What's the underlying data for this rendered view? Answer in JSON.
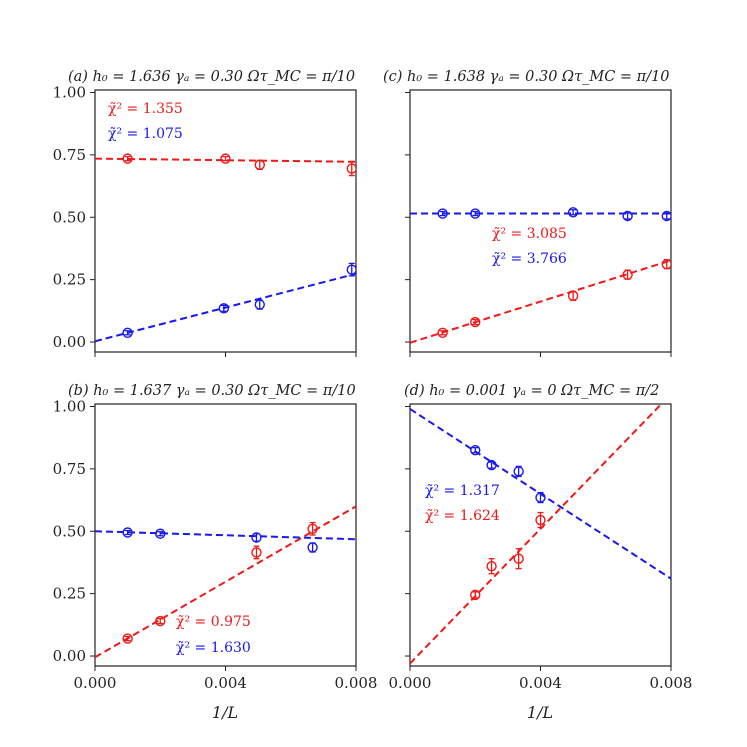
{
  "figure": {
    "xlabel": "1/L",
    "colors": {
      "red": "#f01818",
      "blue": "#1818f0",
      "axis": "#222222"
    }
  },
  "chart_data": [
    {
      "type": "scatter",
      "title": "(a) h₀ = 1.636 γₐ = 0.30 Ωτ_MC = π/10",
      "xlim": [
        0,
        0.008
      ],
      "ylim": [
        0,
        1.0
      ],
      "xticks": [
        "",
        "",
        ""
      ],
      "yticks": [
        "0.00",
        "0.25",
        "0.50",
        "0.75",
        "1.00"
      ],
      "xlabel": "",
      "series": [
        {
          "name": "red",
          "color": "#f01818",
          "x": [
            0.001,
            0.004,
            0.00505,
            0.00787
          ],
          "y": [
            0.735,
            0.735,
            0.71,
            0.695
          ],
          "err": [
            0.008,
            0.008,
            0.018,
            0.028
          ],
          "fit": [
            0.735,
            -1.6
          ],
          "label": "χ̃² = 1.355"
        },
        {
          "name": "blue",
          "color": "#1818f0",
          "x": [
            0.001,
            0.00395,
            0.00505,
            0.00787
          ],
          "y": [
            0.037,
            0.135,
            0.15,
            0.29
          ],
          "err": [
            0.008,
            0.012,
            0.018,
            0.025
          ],
          "fit": [
            0.003,
            33.8
          ],
          "label": "χ̃² = 1.075"
        }
      ]
    },
    {
      "type": "scatter",
      "title": "(c) h₀ = 1.638 γₐ = 0.30 Ωτ_MC = π/10",
      "xlim": [
        0,
        0.008
      ],
      "ylim": [
        0,
        1.0
      ],
      "xticks": [
        "",
        "",
        ""
      ],
      "yticks": [
        "",
        "",
        "",
        "",
        ""
      ],
      "xlabel": "",
      "series": [
        {
          "name": "red",
          "color": "#f01818",
          "x": [
            0.001,
            0.002,
            0.005,
            0.00667,
            0.00787
          ],
          "y": [
            0.037,
            0.08,
            0.185,
            0.27,
            0.312
          ],
          "err": [
            0.008,
            0.01,
            0.018,
            0.018,
            0.018
          ],
          "fit": [
            -0.003,
            41.3
          ],
          "label": "χ̃² = 3.085"
        },
        {
          "name": "blue",
          "color": "#1818f0",
          "x": [
            0.001,
            0.002,
            0.005,
            0.00667,
            0.00787
          ],
          "y": [
            0.515,
            0.515,
            0.52,
            0.505,
            0.505
          ],
          "err": [
            0.008,
            0.008,
            0.01,
            0.012,
            0.012
          ],
          "fit": [
            0.515,
            0
          ],
          "label": "χ̃² = 3.766"
        }
      ]
    },
    {
      "type": "scatter",
      "title": "(b) h₀ = 1.637 γₐ = 0.30 Ωτ_MC = π/10",
      "xlim": [
        0,
        0.008
      ],
      "ylim": [
        0,
        1.0
      ],
      "xticks": [
        "0.000",
        "0.004",
        "0.008"
      ],
      "yticks": [
        "0.00",
        "0.25",
        "0.50",
        "0.75",
        "1.00"
      ],
      "xlabel": "1/L",
      "series": [
        {
          "name": "red",
          "color": "#f01818",
          "x": [
            0.001,
            0.002,
            0.00495,
            0.00667
          ],
          "y": [
            0.07,
            0.14,
            0.415,
            0.51
          ],
          "err": [
            0.008,
            0.01,
            0.025,
            0.025
          ],
          "fit": [
            -0.005,
            75.6
          ],
          "label": "χ̃² = 0.975"
        },
        {
          "name": "blue",
          "color": "#1818f0",
          "x": [
            0.001,
            0.002,
            0.00495,
            0.00667
          ],
          "y": [
            0.495,
            0.49,
            0.475,
            0.435
          ],
          "err": [
            0.008,
            0.008,
            0.015,
            0.018
          ],
          "fit": [
            0.5,
            -4.0
          ],
          "label": "χ̃² = 1.630"
        }
      ]
    },
    {
      "type": "scatter",
      "title": "(d) h₀ = 0.001 γₐ = 0 Ωτ_MC = π/2",
      "xlim": [
        0,
        0.008
      ],
      "ylim": [
        0,
        1.0
      ],
      "xticks": [
        "0.000",
        "0.004",
        "0.008"
      ],
      "yticks": [
        "",
        "",
        "",
        "",
        ""
      ],
      "xlabel": "1/L",
      "series": [
        {
          "name": "red",
          "color": "#f01818",
          "x": [
            0.002,
            0.0025,
            0.00333,
            0.004
          ],
          "y": [
            0.245,
            0.36,
            0.39,
            0.545
          ],
          "err": [
            0.012,
            0.03,
            0.04,
            0.03
          ],
          "fit": [
            -0.03,
            135
          ],
          "label": "χ̃² = 1.624"
        },
        {
          "name": "blue",
          "color": "#1818f0",
          "x": [
            0.002,
            0.0025,
            0.00333,
            0.004
          ],
          "y": [
            0.825,
            0.765,
            0.74,
            0.635
          ],
          "err": [
            0.01,
            0.012,
            0.02,
            0.02
          ],
          "fit": [
            0.99,
            -85
          ],
          "label": "χ̃² = 1.317"
        }
      ]
    }
  ]
}
